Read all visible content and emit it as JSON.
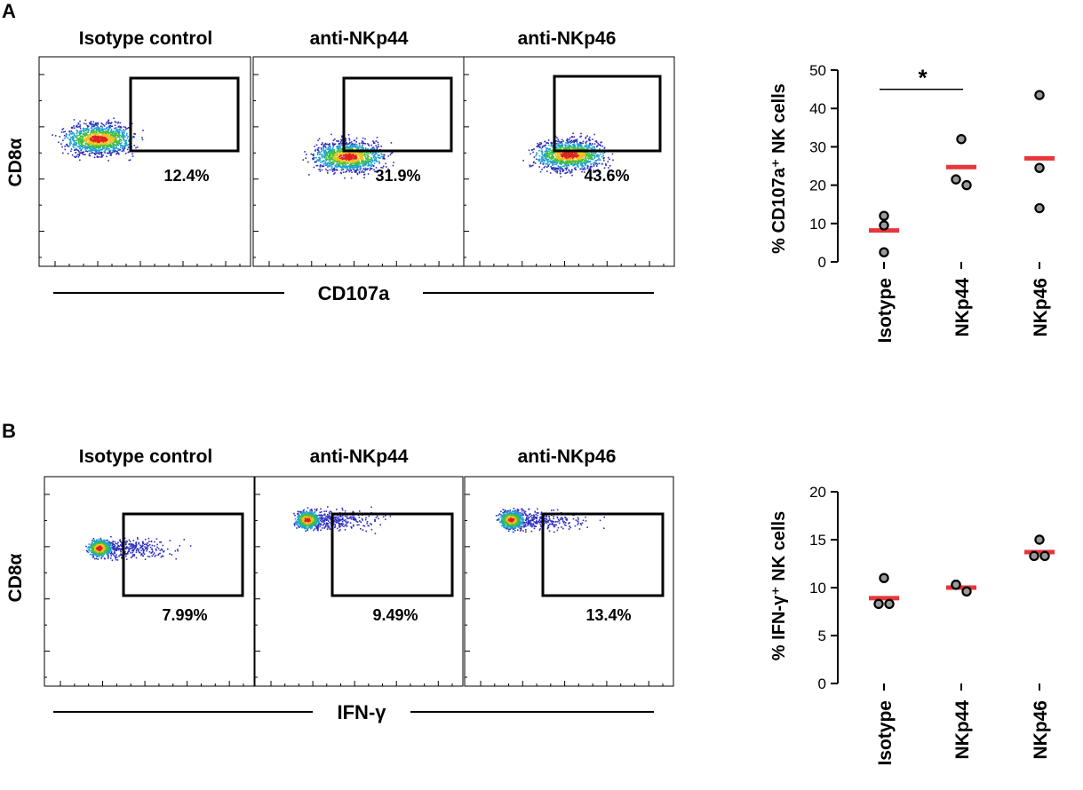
{
  "figure": {
    "panels": [
      {
        "label": "A",
        "flow": {
          "ylabel": "CD8α",
          "xlabel": "CD107a",
          "plots": [
            {
              "title": "Isotype control",
              "percent": "12.4%",
              "center": 0.28,
              "spread": 0.22
            },
            {
              "title": "anti-NKp44",
              "percent": "31.9%",
              "center": 0.45,
              "spread": 0.26
            },
            {
              "title": "anti-NKp46",
              "percent": "43.6%",
              "center": 0.5,
              "spread": 0.25
            }
          ]
        }
      },
      {
        "label": "B",
        "flow": {
          "ylabel": "CD8α",
          "xlabel": "IFN-γ",
          "plots": [
            {
              "title": "Isotype control",
              "percent": "7.99%",
              "center": 0.26,
              "spread": 0.1
            },
            {
              "title": "anti-NKp44",
              "percent": "9.49%",
              "center": 0.25,
              "spread": 0.1
            },
            {
              "title": "anti-NKp46",
              "percent": "13.4%",
              "center": 0.22,
              "spread": 0.1
            }
          ]
        }
      }
    ]
  },
  "colors": {
    "mean_line": "#e8363a",
    "point_fill": "#9a9a9a",
    "axis": "#000000",
    "gate": "#000000"
  },
  "chart_data": [
    {
      "type": "scatter",
      "panel": "A",
      "title": "",
      "ylabel": "% CD107a⁺ NK cells",
      "categories": [
        "Isotype",
        "NKp44",
        "NKp46"
      ],
      "ylim": [
        0,
        50
      ],
      "yticks": [
        0,
        10,
        20,
        30,
        40,
        50
      ],
      "points": [
        [
          12,
          9.5,
          2.5
        ],
        [
          32,
          21.5,
          20
        ],
        [
          43.5,
          24.5,
          14
        ]
      ],
      "means": [
        8.2,
        24.7,
        27
      ],
      "significance": {
        "from": 0,
        "to": 1,
        "y": 45,
        "label": "*"
      }
    },
    {
      "type": "scatter",
      "panel": "B",
      "title": "",
      "ylabel": "% IFN-γ⁺ NK cells",
      "categories": [
        "Isotype",
        "NKp44",
        "NKp46"
      ],
      "ylim": [
        0,
        20
      ],
      "yticks": [
        0,
        5,
        10,
        15,
        20
      ],
      "points": [
        [
          11,
          8.3,
          8.3
        ],
        [
          10.3,
          10.3,
          9.6
        ],
        [
          15,
          13.3,
          13.3
        ]
      ],
      "means": [
        8.9,
        10,
        13.7
      ],
      "significance": null
    }
  ]
}
